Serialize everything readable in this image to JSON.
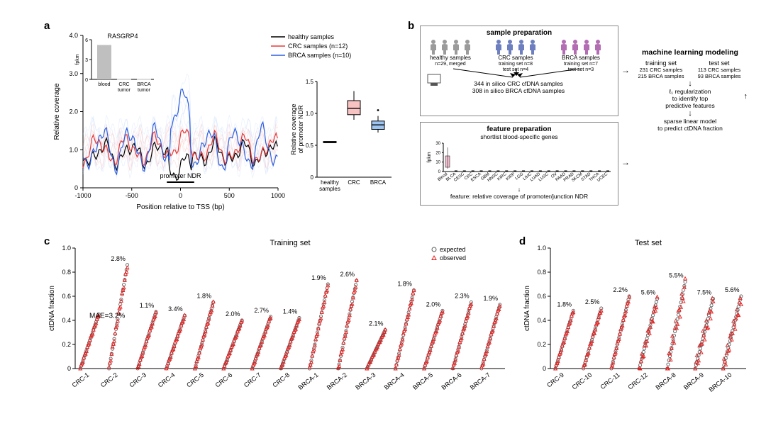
{
  "panel_a": {
    "label": "a",
    "gene_title": "RASGRP4",
    "inset_bar": {
      "ylabel": "fpkm",
      "yticks": [
        0,
        3,
        6
      ],
      "categories": [
        "blood",
        "CRC\ntumor",
        "BRCA\ntumor"
      ],
      "values": [
        5.2,
        0.05,
        0.05
      ],
      "bar_color": "#bfbfbf"
    },
    "main_plot": {
      "xlabel": "Position relative to TSS (bp)",
      "ylabel": "Relative coverage",
      "xlim": [
        -1000,
        1000
      ],
      "ylim": [
        0,
        4.0
      ],
      "xticks": [
        -1000,
        -500,
        0,
        500,
        1000
      ],
      "yticks": [
        0,
        "1.0",
        "2.0",
        "3.0",
        "4.0"
      ],
      "promoter_ndr_label": "promoter NDR",
      "legend": [
        {
          "label": "healthy samples",
          "color": "#000000"
        },
        {
          "label": "CRC samples (n=12)",
          "color": "#e83838"
        },
        {
          "label": "BRCA samples (n=10)",
          "color": "#2b5fe0"
        }
      ],
      "light_colors": {
        "crc": "#f28f8f",
        "brca": "#a3c4f5"
      }
    },
    "boxplot": {
      "ylabel": "Relative coverage\nof promoter NDR",
      "categories": [
        "healthy\nsamples",
        "CRC",
        "BRCA"
      ],
      "ylim": [
        0,
        1.5
      ],
      "yticks": [
        "0",
        "0.5",
        "1.0",
        "1.5"
      ],
      "boxes": [
        {
          "median": 0.55,
          "q1": 0.54,
          "q3": 0.56,
          "lo": 0.54,
          "hi": 0.56,
          "color": "#dddddd"
        },
        {
          "median": 1.08,
          "q1": 0.98,
          "q3": 1.2,
          "lo": 0.9,
          "hi": 1.35,
          "color": "#f7c2c2"
        },
        {
          "median": 0.82,
          "q1": 0.75,
          "q3": 0.88,
          "lo": 0.7,
          "hi": 0.96,
          "color": "#9dc5f2",
          "outlier": 1.05
        }
      ]
    }
  },
  "panel_b": {
    "label": "b",
    "sample_title": "sample preparation",
    "groups": [
      {
        "label": "healthy samples",
        "sub": "n=29, merged",
        "color": "#9b9b9b"
      },
      {
        "label": "CRC samples",
        "sub": "training set n=8\ntest set n=4",
        "color": "#6d7fbf"
      },
      {
        "label": "BRCA samples",
        "sub": "training set n=7\ntest set n=3",
        "color": "#b36db3"
      }
    ],
    "in_silico_1": "344 in silico CRC cfDNA samples",
    "in_silico_2": "308 in silico BRCA cfDNA samples",
    "feature_title": "feature preparation",
    "feature_sub": "shortlist blood-specific genes",
    "feature_out": "feature: relative coverage of promoter/junction NDR",
    "fpkm_label": "fpkm",
    "fpkm_yticks": [
      0,
      10,
      20,
      30
    ],
    "tissues": [
      "Blood",
      "BLCA",
      "CESC",
      "CRC",
      "ESCA",
      "GBM",
      "HNSC",
      "KIRC",
      "KIRP",
      "LGG",
      "LIHC",
      "LUAD",
      "LUSC",
      "OV",
      "PAAD",
      "PRAD",
      "SKCM",
      "STAD",
      "THCA",
      "UCEC"
    ],
    "ml_title": "machine learning modeling",
    "ml_training": "training set",
    "ml_training_sub": "231 CRC samples\n215 BRCA samples",
    "ml_test": "test set",
    "ml_test_sub": "113 CRC samples\n93 BRCA samples",
    "ml_step1": "ℓ₁ regularization\nto identify top\npredictive features",
    "ml_step2": "sparse linear model\nto predict ctDNA fraction"
  },
  "panel_c": {
    "label": "c",
    "title": "Training set",
    "ylabel": "ctDNA fraction",
    "ylim": [
      0,
      1.0
    ],
    "yticks": [
      "0",
      "0.2",
      "0.4",
      "0.6",
      "0.8",
      "1.0"
    ],
    "legend_expected": "expected",
    "legend_observed": "observed",
    "mae_label": "MAE=3.2%",
    "expected_color": "#5f5f5f",
    "observed_color": "#ea1f1f",
    "samples": [
      {
        "name": "CRC-1",
        "pct": "",
        "max": 0.45
      },
      {
        "name": "CRC-2",
        "pct": "2.8%",
        "max": 0.86
      },
      {
        "name": "CRC-3",
        "pct": "1.1%",
        "max": 0.47
      },
      {
        "name": "CRC-4",
        "pct": "3.4%",
        "max": 0.44
      },
      {
        "name": "CRC-5",
        "pct": "1.8%",
        "max": 0.55
      },
      {
        "name": "CRC-6",
        "pct": "2.0%",
        "max": 0.4
      },
      {
        "name": "CRC-7",
        "pct": "2.7%",
        "max": 0.43
      },
      {
        "name": "CRC-8",
        "pct": "1.4%",
        "max": 0.42
      },
      {
        "name": "BRCA-1",
        "pct": "1.9%",
        "max": 0.7
      },
      {
        "name": "BRCA-2",
        "pct": "2.6%",
        "max": 0.73
      },
      {
        "name": "BRCA-3",
        "pct": "2.1%",
        "max": 0.32
      },
      {
        "name": "BRCA-4",
        "pct": "1.8%",
        "max": 0.65
      },
      {
        "name": "BRCA-5",
        "pct": "2.0%",
        "max": 0.48
      },
      {
        "name": "BRCA-6",
        "pct": "2.3%",
        "max": 0.55
      },
      {
        "name": "BRCA-7",
        "pct": "1.9%",
        "max": 0.53
      }
    ]
  },
  "panel_d": {
    "label": "d",
    "title": "Test set",
    "ylabel": "ctDNA fraction",
    "ylim": [
      0,
      1.0
    ],
    "yticks": [
      "0",
      "0.2",
      "0.4",
      "0.6",
      "0.8",
      "1.0"
    ],
    "samples": [
      {
        "name": "CRC-9",
        "pct": "1.8%",
        "max": 0.48,
        "dev": 0.02
      },
      {
        "name": "CRC-10",
        "pct": "2.5%",
        "max": 0.5,
        "dev": 0.03
      },
      {
        "name": "CRC-11",
        "pct": "2.2%",
        "max": 0.6,
        "dev": 0.02
      },
      {
        "name": "CRC-12",
        "pct": "5.6%",
        "max": 0.58,
        "dev": 0.07
      },
      {
        "name": "BRCA-8",
        "pct": "5.5%",
        "max": 0.72,
        "dev": 0.09
      },
      {
        "name": "BRCA-9",
        "pct": "7.5%",
        "max": 0.58,
        "dev": 0.11
      },
      {
        "name": "BRCA-10",
        "pct": "5.6%",
        "max": 0.6,
        "dev": 0.09
      }
    ]
  }
}
